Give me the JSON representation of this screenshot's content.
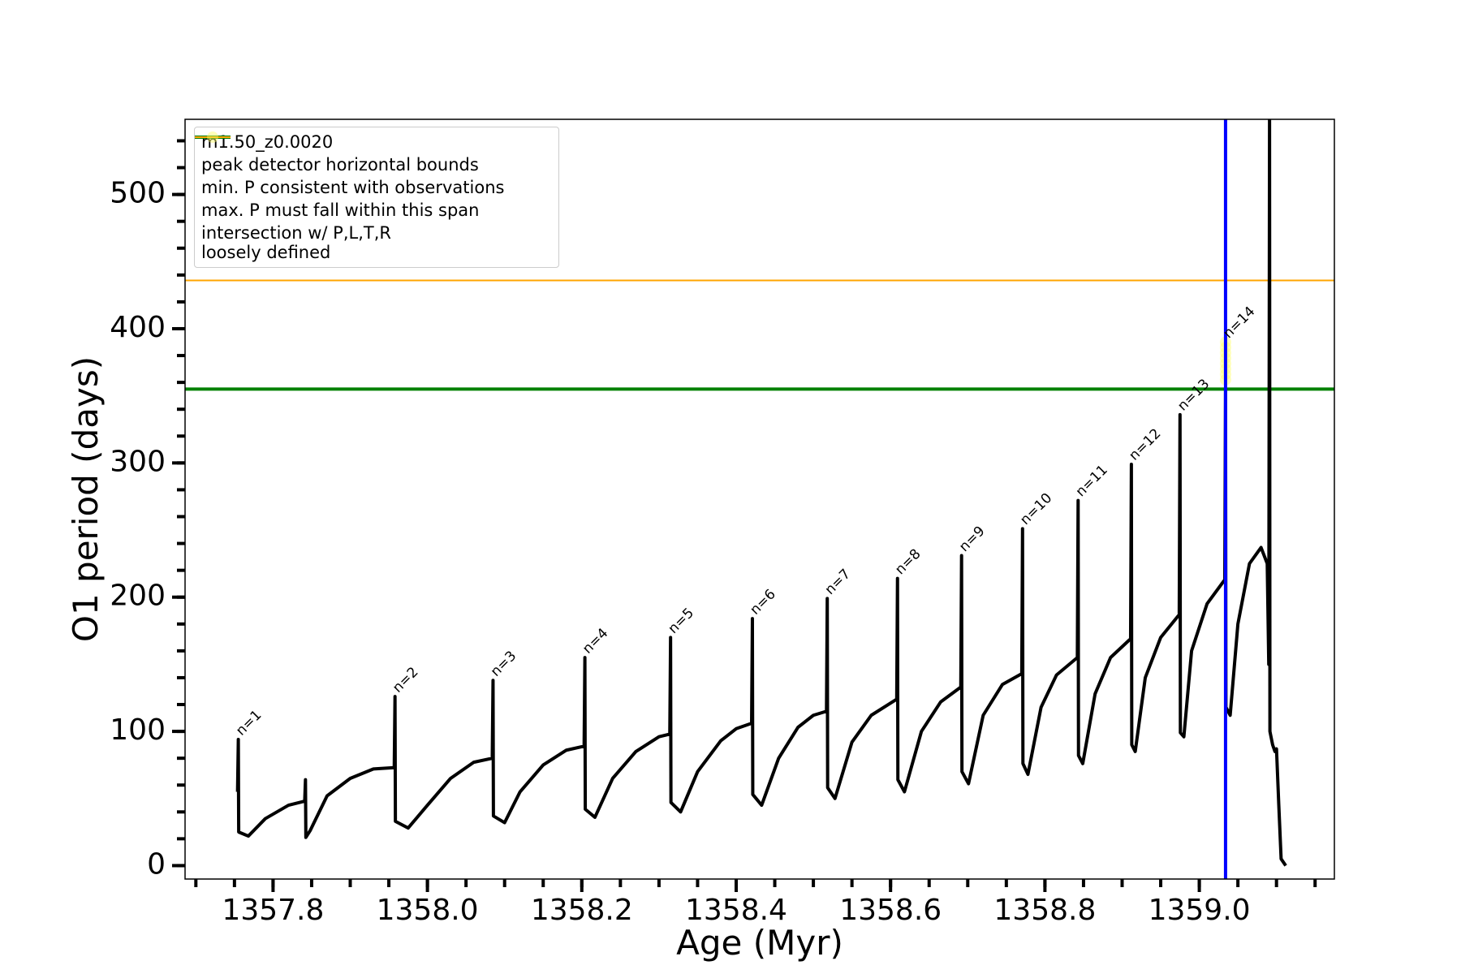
{
  "chart_data": {
    "type": "line",
    "xlabel": "Age (Myr)",
    "ylabel": "O1 period (days)",
    "xlim": [
      1357.686,
      1359.175
    ],
    "ylim": [
      -10,
      556
    ],
    "xticks": [
      1357.8,
      {
        "value": 1358,
        "label": "1358.0"
      },
      1358.2,
      1358.4,
      1358.6,
      1358.8,
      {
        "value": 1359,
        "label": "1359.0"
      }
    ],
    "yticks": [
      0,
      100,
      200,
      300,
      400,
      500
    ],
    "minor_xticks": [
      1357.7,
      1357.75,
      1357.8,
      1357.85,
      1357.9,
      1357.95,
      1358,
      1358.05,
      1358.1,
      1358.15,
      1358.2,
      1358.25,
      1358.3,
      1358.35,
      1358.4,
      1358.45,
      1358.5,
      1358.55,
      1358.6,
      1358.65,
      1358.7,
      1358.75,
      1358.8,
      1358.85,
      1358.9,
      1358.95,
      1359,
      1359.05,
      1359.1,
      1359.15
    ],
    "minor_yticks": [
      0,
      20,
      40,
      60,
      80,
      100,
      120,
      140,
      160,
      180,
      200,
      220,
      240,
      260,
      280,
      300,
      320,
      340,
      360,
      380,
      400,
      420,
      440,
      460,
      480,
      500,
      520,
      540
    ],
    "series": [
      {
        "name": "m1.50_z0.0020",
        "color": "#000000",
        "x": [
          1357.754,
          1357.755,
          1357.7555,
          1357.768,
          1357.79,
          1357.82,
          1357.841,
          1357.842,
          1357.8425,
          1357.848,
          1357.87,
          1357.9,
          1357.93,
          1357.957,
          1357.958,
          1357.9585,
          1357.975,
          1358,
          1358.03,
          1358.06,
          1358.084,
          1358.085,
          1358.0855,
          1358.1,
          1358.12,
          1358.15,
          1358.18,
          1358.203,
          1358.204,
          1358.2045,
          1358.217,
          1358.24,
          1358.27,
          1358.3,
          1358.314,
          1358.315,
          1358.3155,
          1358.328,
          1358.35,
          1358.38,
          1358.4,
          1358.42,
          1358.421,
          1358.4215,
          1358.433,
          1358.455,
          1358.48,
          1358.5,
          1358.517,
          1358.518,
          1358.5185,
          1358.528,
          1358.55,
          1358.575,
          1358.608,
          1358.609,
          1358.6095,
          1358.618,
          1358.64,
          1358.665,
          1358.691,
          1358.692,
          1358.6925,
          1358.701,
          1358.72,
          1358.745,
          1358.77,
          1358.771,
          1358.7715,
          1358.778,
          1358.795,
          1358.815,
          1358.842,
          1358.843,
          1358.8435,
          1358.849,
          1358.865,
          1358.885,
          1358.911,
          1358.912,
          1358.9125,
          1358.917,
          1358.93,
          1358.95,
          1358.974,
          1358.975,
          1358.9755,
          1358.98,
          1358.99,
          1359.01,
          1359.033,
          1359.034,
          1359.0345,
          1359.04,
          1359.05,
          1359.065,
          1359.08,
          1359.088,
          1359.09,
          1359.091,
          1359.0915,
          1359.095,
          1359.098,
          1359.1,
          1359.103,
          1359.106,
          1359.112
        ],
        "values": [
          55,
          94,
          25,
          22,
          35,
          45,
          48,
          64,
          21,
          26,
          52,
          65,
          72,
          73,
          126,
          33,
          28,
          45,
          65,
          77,
          80,
          138,
          37,
          32,
          55,
          75,
          86,
          89,
          155,
          42,
          36,
          65,
          85,
          96,
          98,
          170,
          47,
          40,
          70,
          93,
          102,
          106,
          184,
          53,
          45,
          80,
          103,
          112,
          115,
          199,
          58,
          50,
          92,
          112,
          124,
          214,
          64,
          55,
          100,
          122,
          133,
          231,
          70,
          61,
          112,
          135,
          143,
          251,
          76,
          68,
          118,
          142,
          155,
          272,
          82,
          76,
          128,
          155,
          169,
          299,
          90,
          85,
          140,
          170,
          187,
          336,
          99,
          96,
          160,
          195,
          213,
          355,
          118,
          112,
          180,
          225,
          237,
          225,
          150,
          560,
          100,
          90,
          85,
          87,
          45,
          5,
          0
        ]
      },
      {
        "name": "intersection w/ P,L,T,R\nloosely defined",
        "type": "scatter",
        "color": "#ffff66",
        "x": [
          1359.034,
          1359.034,
          1359.034,
          1359.034,
          1359.034,
          1359.034,
          1359.034,
          1359.034
        ],
        "values": [
          362,
          366,
          370,
          374,
          378,
          382,
          386,
          390
        ]
      }
    ],
    "vlines": [
      {
        "name": "peak detector horizontal bounds",
        "value": 1359.034,
        "color": "#0000ff"
      }
    ],
    "hlines": [
      {
        "name": "min. P consistent with observations",
        "value": 355,
        "color": "#008000"
      },
      {
        "name": "max. P must fall within this span",
        "value": 436,
        "color": "#ffa500"
      }
    ],
    "annotations": [
      {
        "text": "n=1",
        "x": 1357.755,
        "y": 94
      },
      {
        "text": "n=2",
        "x": 1357.958,
        "y": 126
      },
      {
        "text": "n=3",
        "x": 1358.085,
        "y": 138
      },
      {
        "text": "n=4",
        "x": 1358.204,
        "y": 155
      },
      {
        "text": "n=5",
        "x": 1358.315,
        "y": 170
      },
      {
        "text": "n=6",
        "x": 1358.421,
        "y": 184
      },
      {
        "text": "n=7",
        "x": 1358.518,
        "y": 199
      },
      {
        "text": "n=8",
        "x": 1358.609,
        "y": 214
      },
      {
        "text": "n=9",
        "x": 1358.692,
        "y": 231
      },
      {
        "text": "n=10",
        "x": 1358.771,
        "y": 251
      },
      {
        "text": "n=11",
        "x": 1358.843,
        "y": 272
      },
      {
        "text": "n=12",
        "x": 1358.912,
        "y": 299
      },
      {
        "text": "n=13",
        "x": 1358.975,
        "y": 336
      },
      {
        "text": "n=14",
        "x": 1359.034,
        "y": 390
      }
    ]
  }
}
